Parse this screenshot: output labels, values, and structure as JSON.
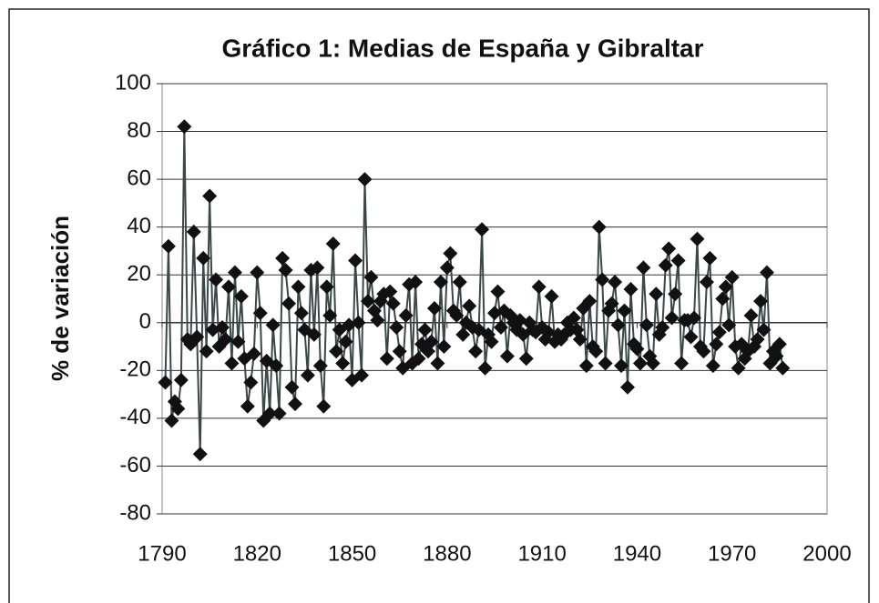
{
  "chart_data": {
    "type": "line",
    "title": "Gráfico 1: Medias de España y Gibraltar",
    "y_label": "% de variación",
    "x": [
      1791,
      1792,
      1793,
      1794,
      1795,
      1796,
      1797,
      1798,
      1799,
      1800,
      1801,
      1802,
      1803,
      1804,
      1805,
      1806,
      1807,
      1808,
      1809,
      1810,
      1811,
      1812,
      1813,
      1814,
      1815,
      1816,
      1817,
      1818,
      1819,
      1820,
      1821,
      1822,
      1823,
      1824,
      1825,
      1826,
      1827,
      1828,
      1829,
      1830,
      1831,
      1832,
      1833,
      1834,
      1835,
      1836,
      1837,
      1838,
      1839,
      1840,
      1841,
      1842,
      1843,
      1844,
      1845,
      1846,
      1847,
      1848,
      1849,
      1850,
      1851,
      1852,
      1853,
      1854,
      1855,
      1856,
      1857,
      1858,
      1859,
      1860,
      1861,
      1862,
      1863,
      1864,
      1865,
      1866,
      1867,
      1868,
      1869,
      1870,
      1871,
      1872,
      1873,
      1874,
      1875,
      1876,
      1877,
      1878,
      1879,
      1880,
      1881,
      1882,
      1883,
      1884,
      1885,
      1886,
      1887,
      1888,
      1889,
      1890,
      1891,
      1892,
      1893,
      1894,
      1895,
      1896,
      1897,
      1898,
      1899,
      1900,
      1901,
      1902,
      1903,
      1904,
      1905,
      1906,
      1907,
      1908,
      1909,
      1910,
      1911,
      1912,
      1913,
      1914,
      1915,
      1916,
      1917,
      1918,
      1919,
      1920,
      1921,
      1922,
      1923,
      1924,
      1925,
      1926,
      1927,
      1928,
      1929,
      1930,
      1931,
      1932,
      1933,
      1934,
      1935,
      1936,
      1937,
      1938,
      1939,
      1940,
      1941,
      1942,
      1943,
      1944,
      1945,
      1946,
      1947,
      1948,
      1949,
      1950,
      1951,
      1952,
      1953,
      1954,
      1955,
      1956,
      1957,
      1958,
      1959,
      1960,
      1961,
      1962,
      1963,
      1964,
      1965,
      1966,
      1967,
      1968,
      1969,
      1970,
      1971,
      1972,
      1973,
      1974,
      1975,
      1976,
      1977,
      1978,
      1979,
      1980,
      1981,
      1982,
      1983,
      1984,
      1985,
      1986
    ],
    "series": [
      {
        "color": "#3a4848",
        "marker_color": "#111111",
        "values": [
          -25,
          32,
          -41,
          -33,
          -36,
          -24,
          82,
          -7,
          -9,
          38,
          -6,
          -55,
          27,
          -12,
          53,
          -3,
          18,
          -10,
          -2,
          -7,
          15,
          -17,
          21,
          -8,
          11,
          -15,
          -35,
          -25,
          -13,
          21,
          4,
          -41,
          -16,
          -38,
          -1,
          -18,
          -38,
          27,
          22,
          8,
          -27,
          -34,
          15,
          4,
          -3,
          -22,
          22,
          -5,
          23,
          -18,
          -35,
          15,
          3,
          33,
          -12,
          -3,
          -17,
          -8,
          -1,
          -24,
          26,
          0,
          -22,
          60,
          9,
          19,
          5,
          1,
          9,
          12,
          -15,
          13,
          8,
          -2,
          -12,
          -19,
          3,
          16,
          -17,
          17,
          -15,
          -9,
          -3,
          -12,
          -8,
          6,
          -17,
          17,
          -10,
          23,
          29,
          5,
          3,
          17,
          -5,
          0,
          7,
          -2,
          -12,
          -3,
          39,
          -19,
          -5,
          -8,
          4,
          13,
          -2,
          5,
          -14,
          3,
          0,
          -3,
          1,
          -5,
          -15,
          0,
          -3,
          -4,
          15,
          -2,
          -7,
          -4,
          11,
          -8,
          -5,
          -7,
          -5,
          0,
          -3,
          2,
          -3,
          -7,
          6,
          -18,
          9,
          -10,
          -12,
          40,
          18,
          -17,
          5,
          8,
          17,
          -1,
          -18,
          5,
          -27,
          14,
          -9,
          -11,
          -17,
          23,
          -1,
          -14,
          -17,
          12,
          -5,
          -2,
          24,
          31,
          2,
          12,
          26,
          -17,
          1,
          1,
          -6,
          2,
          35,
          -10,
          -12,
          17,
          27,
          -18,
          -9,
          -4,
          10,
          15,
          -1,
          19,
          -10,
          -19,
          -9,
          -15,
          -12,
          3,
          -10,
          -7,
          9,
          -3,
          21,
          -17,
          -12,
          -14,
          -9,
          -19
        ]
      }
    ],
    "xlim": [
      1790,
      2000
    ],
    "xticks": [
      1790,
      1820,
      1850,
      1880,
      1910,
      1940,
      1970,
      2000
    ],
    "ylim": [
      -80,
      100
    ],
    "yticks": [
      -80,
      -60,
      -40,
      -20,
      0,
      20,
      40,
      60,
      80,
      100
    ],
    "grid": true
  }
}
